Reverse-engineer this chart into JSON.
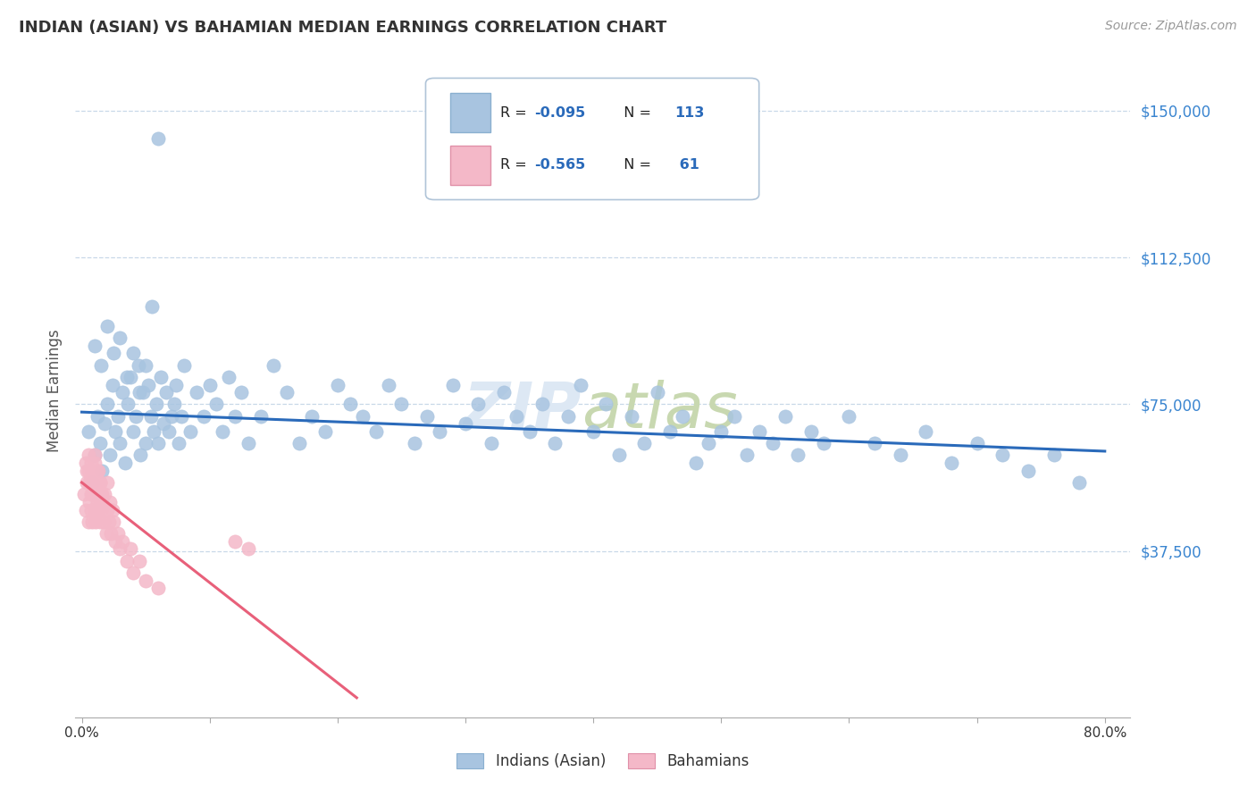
{
  "title": "INDIAN (ASIAN) VS BAHAMIAN MEDIAN EARNINGS CORRELATION CHART",
  "source": "Source: ZipAtlas.com",
  "ylabel": "Median Earnings",
  "xlim": [
    -0.005,
    0.82
  ],
  "ylim": [
    -5000,
    162000
  ],
  "yticks": [
    0,
    37500,
    75000,
    112500,
    150000
  ],
  "ytick_labels": [
    "",
    "$37,500",
    "$75,000",
    "$112,500",
    "$150,000"
  ],
  "xticks": [
    0.0,
    0.1,
    0.2,
    0.3,
    0.4,
    0.5,
    0.6,
    0.7,
    0.8
  ],
  "xtick_labels": [
    "0.0%",
    "",
    "",
    "",
    "",
    "",
    "",
    "",
    "80.0%"
  ],
  "blue_color": "#a8c4e0",
  "pink_color": "#f4b8c8",
  "trendline_blue": "#2a6aba",
  "trendline_pink": "#e8607a",
  "watermark_color": "#dde8f4",
  "blue_trendline_x0": 0.0,
  "blue_trendline_y0": 73000,
  "blue_trendline_x1": 0.8,
  "blue_trendline_y1": 63000,
  "pink_trendline_x0": 0.0,
  "pink_trendline_y0": 55000,
  "pink_trendline_x1": 0.215,
  "pink_trendline_y1": 0,
  "blue_scatter_x": [
    0.005,
    0.008,
    0.01,
    0.012,
    0.014,
    0.016,
    0.018,
    0.02,
    0.022,
    0.024,
    0.026,
    0.028,
    0.03,
    0.032,
    0.034,
    0.036,
    0.038,
    0.04,
    0.042,
    0.044,
    0.046,
    0.048,
    0.05,
    0.052,
    0.054,
    0.056,
    0.058,
    0.06,
    0.062,
    0.064,
    0.066,
    0.068,
    0.07,
    0.072,
    0.074,
    0.076,
    0.078,
    0.08,
    0.085,
    0.09,
    0.095,
    0.1,
    0.105,
    0.11,
    0.115,
    0.12,
    0.125,
    0.13,
    0.14,
    0.15,
    0.16,
    0.17,
    0.18,
    0.19,
    0.2,
    0.21,
    0.22,
    0.23,
    0.24,
    0.25,
    0.26,
    0.27,
    0.28,
    0.29,
    0.3,
    0.31,
    0.32,
    0.33,
    0.34,
    0.35,
    0.36,
    0.37,
    0.38,
    0.39,
    0.4,
    0.41,
    0.42,
    0.43,
    0.44,
    0.45,
    0.46,
    0.47,
    0.48,
    0.49,
    0.5,
    0.51,
    0.52,
    0.53,
    0.54,
    0.55,
    0.56,
    0.57,
    0.58,
    0.6,
    0.62,
    0.64,
    0.66,
    0.68,
    0.7,
    0.72,
    0.74,
    0.76,
    0.78,
    0.01,
    0.015,
    0.02,
    0.025,
    0.03,
    0.035,
    0.04,
    0.045,
    0.05,
    0.055,
    0.06
  ],
  "blue_scatter_y": [
    68000,
    55000,
    62000,
    72000,
    65000,
    58000,
    70000,
    75000,
    62000,
    80000,
    68000,
    72000,
    65000,
    78000,
    60000,
    75000,
    82000,
    68000,
    72000,
    85000,
    62000,
    78000,
    65000,
    80000,
    72000,
    68000,
    75000,
    65000,
    82000,
    70000,
    78000,
    68000,
    72000,
    75000,
    80000,
    65000,
    72000,
    85000,
    68000,
    78000,
    72000,
    80000,
    75000,
    68000,
    82000,
    72000,
    78000,
    65000,
    72000,
    85000,
    78000,
    65000,
    72000,
    68000,
    80000,
    75000,
    72000,
    68000,
    80000,
    75000,
    65000,
    72000,
    68000,
    80000,
    70000,
    75000,
    65000,
    78000,
    72000,
    68000,
    75000,
    65000,
    72000,
    80000,
    68000,
    75000,
    62000,
    72000,
    65000,
    78000,
    68000,
    72000,
    60000,
    65000,
    68000,
    72000,
    62000,
    68000,
    65000,
    72000,
    62000,
    68000,
    65000,
    72000,
    65000,
    62000,
    68000,
    60000,
    65000,
    62000,
    58000,
    62000,
    55000,
    90000,
    85000,
    95000,
    88000,
    92000,
    82000,
    88000,
    78000,
    85000,
    100000,
    143000
  ],
  "pink_scatter_x": [
    0.002,
    0.003,
    0.004,
    0.005,
    0.005,
    0.006,
    0.006,
    0.007,
    0.007,
    0.008,
    0.008,
    0.009,
    0.009,
    0.01,
    0.01,
    0.011,
    0.011,
    0.012,
    0.012,
    0.013,
    0.013,
    0.014,
    0.014,
    0.015,
    0.015,
    0.016,
    0.017,
    0.018,
    0.019,
    0.02,
    0.02,
    0.021,
    0.022,
    0.023,
    0.024,
    0.025,
    0.026,
    0.028,
    0.03,
    0.032,
    0.035,
    0.038,
    0.04,
    0.045,
    0.05,
    0.06,
    0.003,
    0.004,
    0.005,
    0.006,
    0.007,
    0.008,
    0.009,
    0.01,
    0.011,
    0.012,
    0.013,
    0.014,
    0.015,
    0.016,
    0.12,
    0.13
  ],
  "pink_scatter_y": [
    52000,
    48000,
    55000,
    58000,
    45000,
    50000,
    55000,
    52000,
    48000,
    58000,
    45000,
    52000,
    55000,
    48000,
    62000,
    52000,
    45000,
    58000,
    50000,
    52000,
    48000,
    55000,
    45000,
    52000,
    48000,
    50000,
    45000,
    52000,
    42000,
    48000,
    55000,
    45000,
    50000,
    42000,
    48000,
    45000,
    40000,
    42000,
    38000,
    40000,
    35000,
    38000,
    32000,
    35000,
    30000,
    28000,
    60000,
    58000,
    62000,
    55000,
    60000,
    58000,
    55000,
    60000,
    55000,
    52000,
    58000,
    55000,
    50000,
    52000,
    40000,
    38000
  ]
}
